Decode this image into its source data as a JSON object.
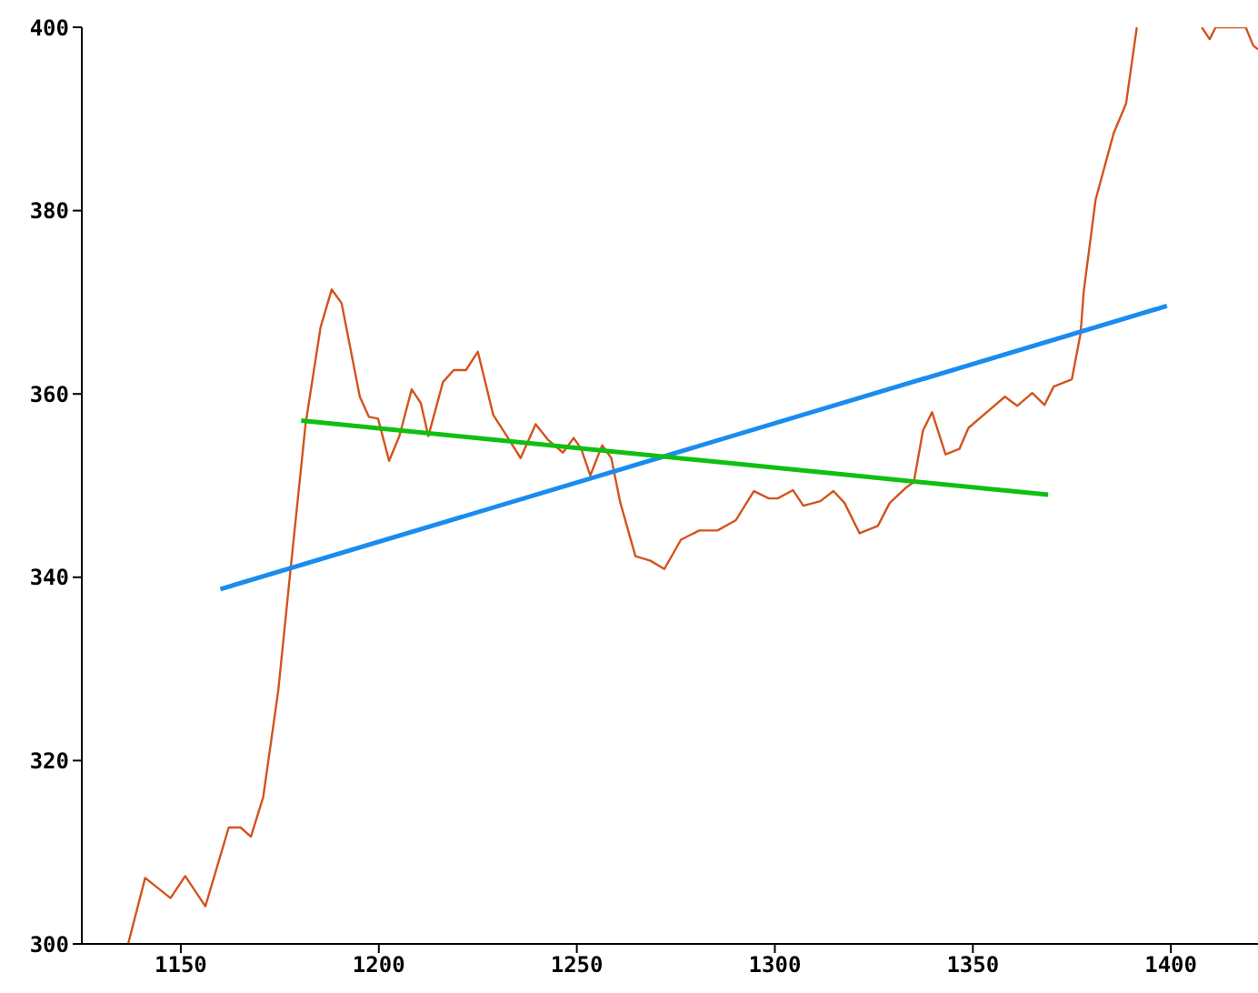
{
  "chart_data": {
    "type": "line",
    "xlim": [
      1125,
      1422
    ],
    "xticks": [
      1150,
      1200,
      1250,
      1300,
      1350,
      1400
    ],
    "ylim": [
      300,
      400
    ],
    "yticks": [
      300,
      320,
      340,
      360,
      380,
      400
    ],
    "marker": "none",
    "series": [
      {
        "color": "#d2541e",
        "x": [
          1136.7,
          1141,
          1147.4,
          1151.1,
          1156.2,
          1162.1,
          1165.1,
          1167.7,
          1170.8,
          1174.6,
          1177.7,
          1181.5,
          1185.3,
          1188.1,
          1190.6,
          1195.2,
          1197.5,
          1199.8,
          1202.6,
          1205.2,
          1208.3,
          1210.6,
          1212.5,
          1216.2,
          1218.9,
          1222,
          1225,
          1228.9,
          1231.9,
          1235.8,
          1239.6,
          1242.7,
          1246.5,
          1249.2,
          1251.1,
          1253.4,
          1256.4,
          1258.7,
          1261,
          1264.8,
          1268.6,
          1272.1,
          1276.3,
          1280.9,
          1285.5,
          1290.1,
          1294.7,
          1298.5,
          1300.7,
          1304.6,
          1307.2,
          1311.5,
          1314.8,
          1317.6,
          1321.4,
          1326,
          1329,
          1332.9,
          1335.1,
          1337.4,
          1339.7,
          1343.1,
          1346.6,
          1348.9,
          1354.3,
          1358.1,
          1361.2,
          1365,
          1368.1,
          1370.4,
          1375,
          1377.2,
          1378,
          1381,
          1385.6,
          1388.7,
          1391.4,
          1400,
          1407.8,
          1409.8,
          1411.3,
          1418.9,
          1420.8,
          1422
        ],
        "values": [
          300,
          307.2,
          305,
          307.4,
          304.1,
          312.7,
          312.7,
          311.7,
          316,
          327.6,
          340.8,
          356.7,
          367.3,
          371.4,
          369.9,
          359.7,
          357.5,
          357.3,
          352.7,
          355.4,
          360.5,
          359,
          355.4,
          361.3,
          362.6,
          362.6,
          364.6,
          357.7,
          355.7,
          353,
          356.7,
          355,
          353.6,
          355.2,
          354,
          351.1,
          354.4,
          353,
          348.1,
          342.3,
          341.8,
          340.9,
          344.1,
          345.1,
          345.1,
          346.2,
          349.4,
          348.6,
          348.6,
          349.5,
          347.8,
          348.3,
          349.4,
          348.1,
          344.8,
          345.6,
          348.1,
          349.7,
          350.4,
          356,
          358,
          353.4,
          354,
          356.3,
          358.3,
          359.7,
          358.7,
          360.1,
          358.8,
          360.8,
          361.6,
          366.6,
          371.2,
          381.2,
          388.5,
          391.7,
          400,
          null,
          400,
          398.7,
          400,
          400,
          398,
          397.6
        ]
      },
      {
        "color": "#1a8cf0",
        "x": [
          1160,
          1399
        ],
        "values": [
          338.7,
          369.6
        ]
      },
      {
        "color": "#10c010",
        "x": [
          1180.4,
          1369
        ],
        "values": [
          357.1,
          349
        ]
      }
    ]
  }
}
